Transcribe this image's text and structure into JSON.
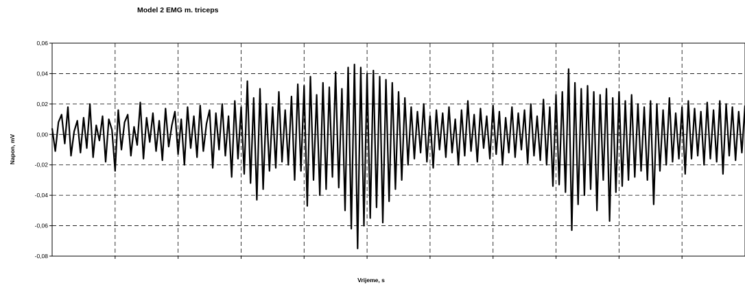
{
  "chart_data": {
    "type": "line",
    "title": "Model 2 EMG m. triceps",
    "xlabel": "Vrijeme, s",
    "ylabel": "Napon, mV",
    "ylim": [
      -0.08,
      0.06
    ],
    "yticks": [
      "0,06",
      "0,04",
      "0,02",
      "0,00",
      "-0,02",
      "-0,04",
      "-0,06",
      "-0,08"
    ],
    "x_gridlines": 11,
    "grid": "dashed",
    "legend": "none",
    "line_color": "#000000",
    "series": [
      {
        "values": [
          0.004,
          -0.011,
          0.008,
          0.013,
          -0.006,
          0.018,
          -0.014,
          0.002,
          0.009,
          -0.012,
          0.011,
          -0.009,
          0.02,
          -0.015,
          0.006,
          -0.004,
          0.012,
          -0.018,
          0.01,
          0.003,
          -0.024,
          0.016,
          -0.01,
          0.008,
          0.013,
          -0.014,
          0.005,
          -0.007,
          0.021,
          -0.016,
          0.011,
          -0.005,
          0.014,
          -0.011,
          0.009,
          -0.017,
          0.017,
          -0.008,
          0.006,
          0.015,
          -0.013,
          0.01,
          -0.02,
          0.018,
          -0.009,
          0.012,
          -0.015,
          0.019,
          -0.011,
          0.007,
          0.016,
          -0.022,
          0.014,
          -0.01,
          0.02,
          -0.014,
          0.012,
          -0.028,
          0.022,
          -0.016,
          0.018,
          -0.026,
          0.035,
          -0.032,
          0.024,
          -0.043,
          0.03,
          -0.036,
          0.02,
          -0.024,
          0.018,
          -0.022,
          0.028,
          -0.018,
          0.016,
          -0.02,
          0.025,
          -0.03,
          0.033,
          -0.024,
          0.032,
          -0.047,
          0.038,
          -0.03,
          0.026,
          -0.04,
          0.034,
          -0.036,
          0.031,
          -0.028,
          0.041,
          -0.035,
          0.03,
          -0.05,
          0.044,
          -0.062,
          0.046,
          -0.075,
          0.044,
          -0.06,
          0.04,
          -0.055,
          0.042,
          -0.048,
          0.038,
          -0.058,
          0.036,
          -0.044,
          0.034,
          -0.036,
          0.028,
          -0.03,
          0.024,
          -0.02,
          0.018,
          -0.016,
          0.015,
          -0.012,
          0.02,
          -0.018,
          0.012,
          -0.022,
          0.016,
          -0.01,
          0.014,
          -0.015,
          0.018,
          -0.012,
          0.01,
          -0.02,
          0.016,
          -0.014,
          0.022,
          -0.011,
          0.013,
          -0.018,
          0.017,
          -0.009,
          0.012,
          -0.016,
          0.019,
          -0.013,
          0.015,
          -0.02,
          0.011,
          -0.012,
          0.018,
          -0.015,
          0.014,
          -0.01,
          0.016,
          -0.019,
          0.02,
          -0.014,
          0.012,
          -0.017,
          0.023,
          -0.02,
          0.018,
          -0.034,
          0.026,
          -0.033,
          0.028,
          -0.038,
          0.043,
          -0.063,
          0.034,
          -0.046,
          0.03,
          -0.04,
          0.032,
          -0.036,
          0.028,
          -0.05,
          0.026,
          -0.03,
          0.03,
          -0.057,
          0.024,
          -0.038,
          0.028,
          -0.034,
          0.022,
          -0.03,
          0.026,
          -0.028,
          0.02,
          -0.024,
          0.018,
          -0.03,
          0.022,
          -0.046,
          0.02,
          -0.024,
          0.016,
          -0.02,
          0.024,
          -0.018,
          0.014,
          -0.016,
          0.018,
          -0.026,
          0.022,
          -0.016,
          0.017,
          -0.014,
          0.015,
          -0.02,
          0.021,
          -0.016,
          0.016,
          -0.018,
          0.022,
          -0.026,
          0.02,
          -0.014,
          0.018,
          -0.017,
          0.015,
          -0.012,
          0.019
        ]
      }
    ]
  }
}
